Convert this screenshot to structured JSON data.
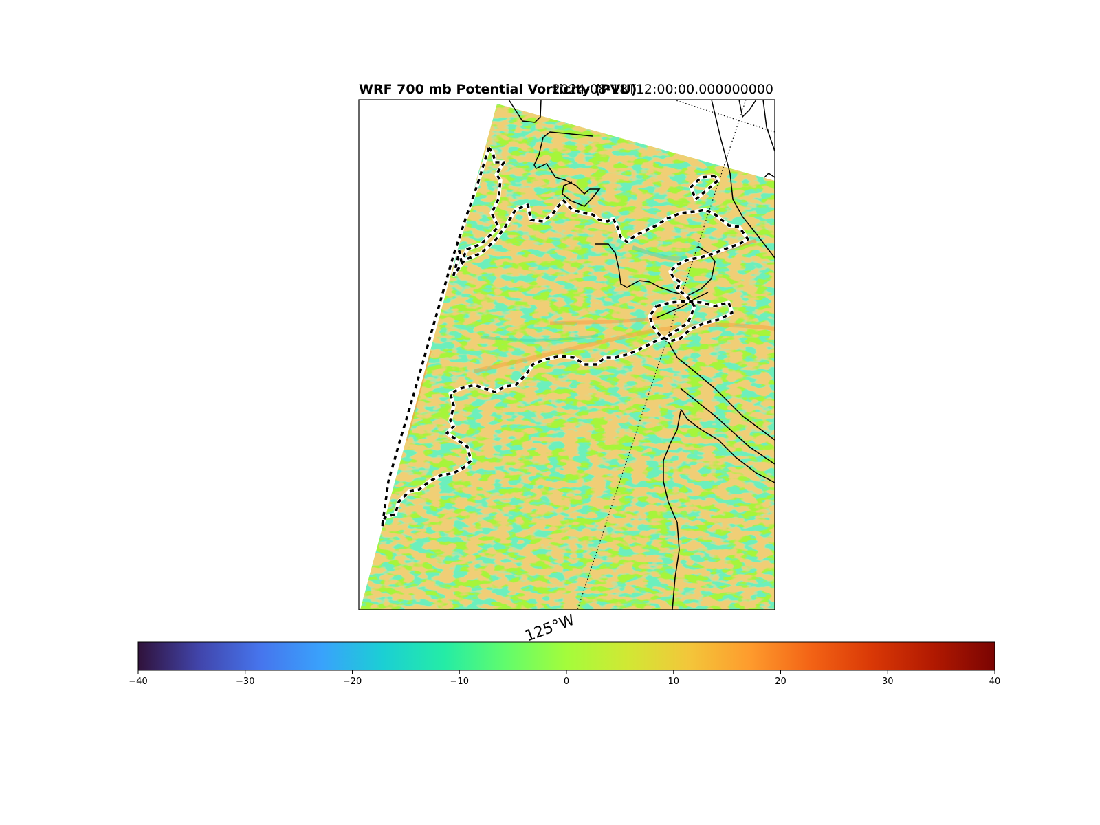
{
  "title": "WRF 700 mb Potential Vorticity (PVU)",
  "valid_time": "2024-08-18T12:00:00.000000000",
  "longitude_label": "125°W",
  "colorbar": {
    "colormap": "turbo",
    "min": -40,
    "max": 40,
    "ticks": [
      "−40",
      "−30",
      "−20",
      "−10",
      "0",
      "10",
      "20",
      "30",
      "40"
    ],
    "tick_values": [
      -40,
      -30,
      -20,
      -10,
      0,
      10,
      20,
      30,
      40
    ]
  },
  "map": {
    "field_background_color": "#a6f53a",
    "coastline_color": "#000000",
    "contour_style": "black-white dashed",
    "gridline_style": "dotted"
  }
}
